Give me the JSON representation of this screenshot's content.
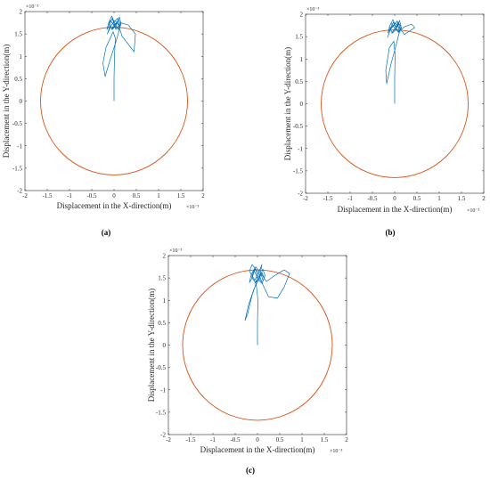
{
  "chart_data": [
    {
      "type": "line",
      "panel_label": "(a)",
      "xlabel": "Displacement in the X-direction(m)",
      "ylabel": "Displacement in the Y-direction(m)",
      "x_exponent_label": "×10⁻³",
      "y_exponent_label": "×10⁻³",
      "xlim": [
        -0.002,
        0.002
      ],
      "ylim": [
        -0.002,
        0.002
      ],
      "xticks": [
        -2,
        -1.5,
        -1,
        -0.5,
        0,
        0.5,
        1,
        1.5,
        2
      ],
      "yticks": [
        -2,
        -1.5,
        -1,
        -0.5,
        0,
        0.5,
        1,
        1.5,
        2
      ],
      "grid": false,
      "series": [
        {
          "kind": "circle",
          "center": [
            0,
            0
          ],
          "radius": 0.00165,
          "color": "#d95319"
        },
        {
          "kind": "orbit",
          "color": "#0072bd",
          "x": [
            0,
            0,
            1e-05,
            3e-05,
            -2e-05,
            -0.00018,
            -0.00025,
            -0.0002,
            -8e-05,
            5e-05,
            0.00012,
            8e-05,
            -6e-05,
            -0.00015,
            -0.0001,
            2e-05,
            0.0001,
            0.00018,
            0.00045,
            0.00048,
            0.00032,
            0.00015,
            4e-05,
            -4e-05,
            -0.0001,
            -0.00016,
            -0.00012,
            -5e-05,
            3e-05,
            0.0001,
            0.00016,
            0.00012,
            4e-05,
            -4e-05,
            -0.00012,
            -8e-05,
            2e-05,
            0.0001,
            0.00015,
            0.0001,
            2e-05,
            -6e-05,
            0.0,
            8e-05,
            0.00014,
            0.0001
          ],
          "y": [
            0.0,
            0.0005,
            0.001,
            0.0014,
            0.00155,
            0.0012,
            0.00085,
            0.00055,
            0.00095,
            0.00135,
            0.0016,
            0.00185,
            0.0017,
            0.0015,
            0.00165,
            0.0018,
            0.0017,
            0.00145,
            0.0011,
            0.0015,
            0.0017,
            0.00175,
            0.0016,
            0.00185,
            0.0017,
            0.0016,
            0.00175,
            0.0019,
            0.0017,
            0.0016,
            0.00172,
            0.00188,
            0.00168,
            0.0016,
            0.00172,
            0.0018,
            0.00166,
            0.00161,
            0.00172,
            0.00182,
            0.00168,
            0.0016,
            0.0017,
            0.00178,
            0.00166,
            0.00162
          ]
        }
      ]
    },
    {
      "type": "line",
      "panel_label": "(b)",
      "xlabel": "Displacement in the X-direction(m)",
      "ylabel": "Displacement in the Y-direction(m)",
      "x_exponent_label": "×10⁻³",
      "y_exponent_label": "×10⁻³",
      "xlim": [
        -0.002,
        0.002
      ],
      "ylim": [
        -0.002,
        0.002
      ],
      "xticks": [
        -2,
        -1.5,
        -1,
        -0.5,
        0,
        0.5,
        1,
        1.5,
        2
      ],
      "yticks": [
        -2,
        -1.5,
        -1,
        -0.5,
        0,
        0.5,
        1,
        1.5,
        2
      ],
      "grid": false,
      "series": [
        {
          "kind": "circle",
          "center": [
            0,
            0
          ],
          "radius": 0.00165,
          "color": "#d95319"
        },
        {
          "kind": "orbit",
          "color": "#0072bd",
          "x": [
            0,
            0,
            1e-05,
            -2e-05,
            -0.00012,
            -0.0002,
            -0.00018,
            -8e-05,
            3e-05,
            0.0001,
            6e-05,
            -8e-05,
            -0.00016,
            -0.0001,
            2e-05,
            0.0001,
            0.00022,
            0.00045,
            0.00038,
            0.00022,
            8e-05,
            -3e-05,
            -0.0001,
            -0.00015,
            -0.00011,
            -4e-05,
            4e-05,
            0.0001,
            0.00015,
            0.00011,
            3e-05,
            -5e-05,
            -0.00012,
            -8e-05,
            2e-05,
            9e-05,
            0.00014,
            8e-05,
            0.0,
            -7e-05,
            1e-05,
            9e-05,
            0.00013,
            8e-05
          ],
          "y": [
            0.0,
            0.0006,
            0.0011,
            0.0014,
            0.00125,
            0.00075,
            0.00045,
            0.0009,
            0.0013,
            0.00158,
            0.00185,
            0.0017,
            0.00148,
            0.00165,
            0.0018,
            0.0017,
            0.00155,
            0.0017,
            0.00178,
            0.00172,
            0.0016,
            0.00182,
            0.00168,
            0.00158,
            0.00174,
            0.00188,
            0.00168,
            0.00158,
            0.0017,
            0.00186,
            0.00166,
            0.00158,
            0.00172,
            0.0018,
            0.00166,
            0.0016,
            0.00172,
            0.00182,
            0.00166,
            0.00158,
            0.00168,
            0.00178,
            0.00166,
            0.0016
          ]
        }
      ]
    },
    {
      "type": "line",
      "panel_label": "(c)",
      "xlabel": "Displacement in the X-direction(m)",
      "ylabel": "Displacement in the Y-direction(m)",
      "x_exponent_label": "×10⁻³",
      "y_exponent_label": "×10⁻³",
      "xlim": [
        -0.002,
        0.002
      ],
      "ylim": [
        -0.002,
        0.002
      ],
      "xticks": [
        -2,
        -1.5,
        -1,
        -0.5,
        0,
        0.5,
        1,
        1.5,
        2
      ],
      "yticks": [
        -2,
        -1.5,
        -1,
        -0.5,
        0,
        0.5,
        1,
        1.5,
        2
      ],
      "grid": false,
      "series": [
        {
          "kind": "circle",
          "center": [
            0,
            0
          ],
          "radius": 0.00168,
          "color": "#d95319"
        },
        {
          "kind": "orbit",
          "color": "#0072bd",
          "x": [
            0,
            0,
            1e-05,
            -3e-05,
            -0.00012,
            -0.00022,
            -0.00028,
            -0.0002,
            -8e-05,
            4e-05,
            0.0001,
            6e-05,
            -6e-05,
            -0.00018,
            -0.00012,
            2e-05,
            0.00012,
            0.00025,
            0.00045,
            0.0006,
            0.00072,
            0.0006,
            0.00038,
            0.0002,
            8e-05,
            -4e-05,
            -0.00012,
            -0.00018,
            -0.00014,
            -6e-05,
            3e-05,
            0.00011,
            0.00017,
            0.00012,
            4e-05,
            -5e-05,
            -0.00013,
            -8e-05,
            2e-05,
            0.0001,
            0.00015,
            0.0001,
            2e-05,
            -6e-05,
            0.0,
            8e-05,
            0.00012
          ],
          "y": [
            0.0,
            0.0005,
            0.001,
            0.00138,
            0.00112,
            0.0007,
            0.00055,
            0.0009,
            0.00125,
            0.0015,
            0.0018,
            0.0017,
            0.00145,
            0.00165,
            0.0018,
            0.00162,
            0.00135,
            0.00108,
            0.00105,
            0.0013,
            0.0016,
            0.00168,
            0.00155,
            0.00142,
            0.0016,
            0.00175,
            0.0015,
            0.0014,
            0.00158,
            0.00172,
            0.00148,
            0.0014,
            0.00155,
            0.0017,
            0.00148,
            0.0014,
            0.00152,
            0.00168,
            0.00145,
            0.00138,
            0.0015,
            0.00162,
            0.00145,
            0.00138,
            0.0015,
            0.0016,
            0.00145
          ]
        }
      ]
    }
  ]
}
